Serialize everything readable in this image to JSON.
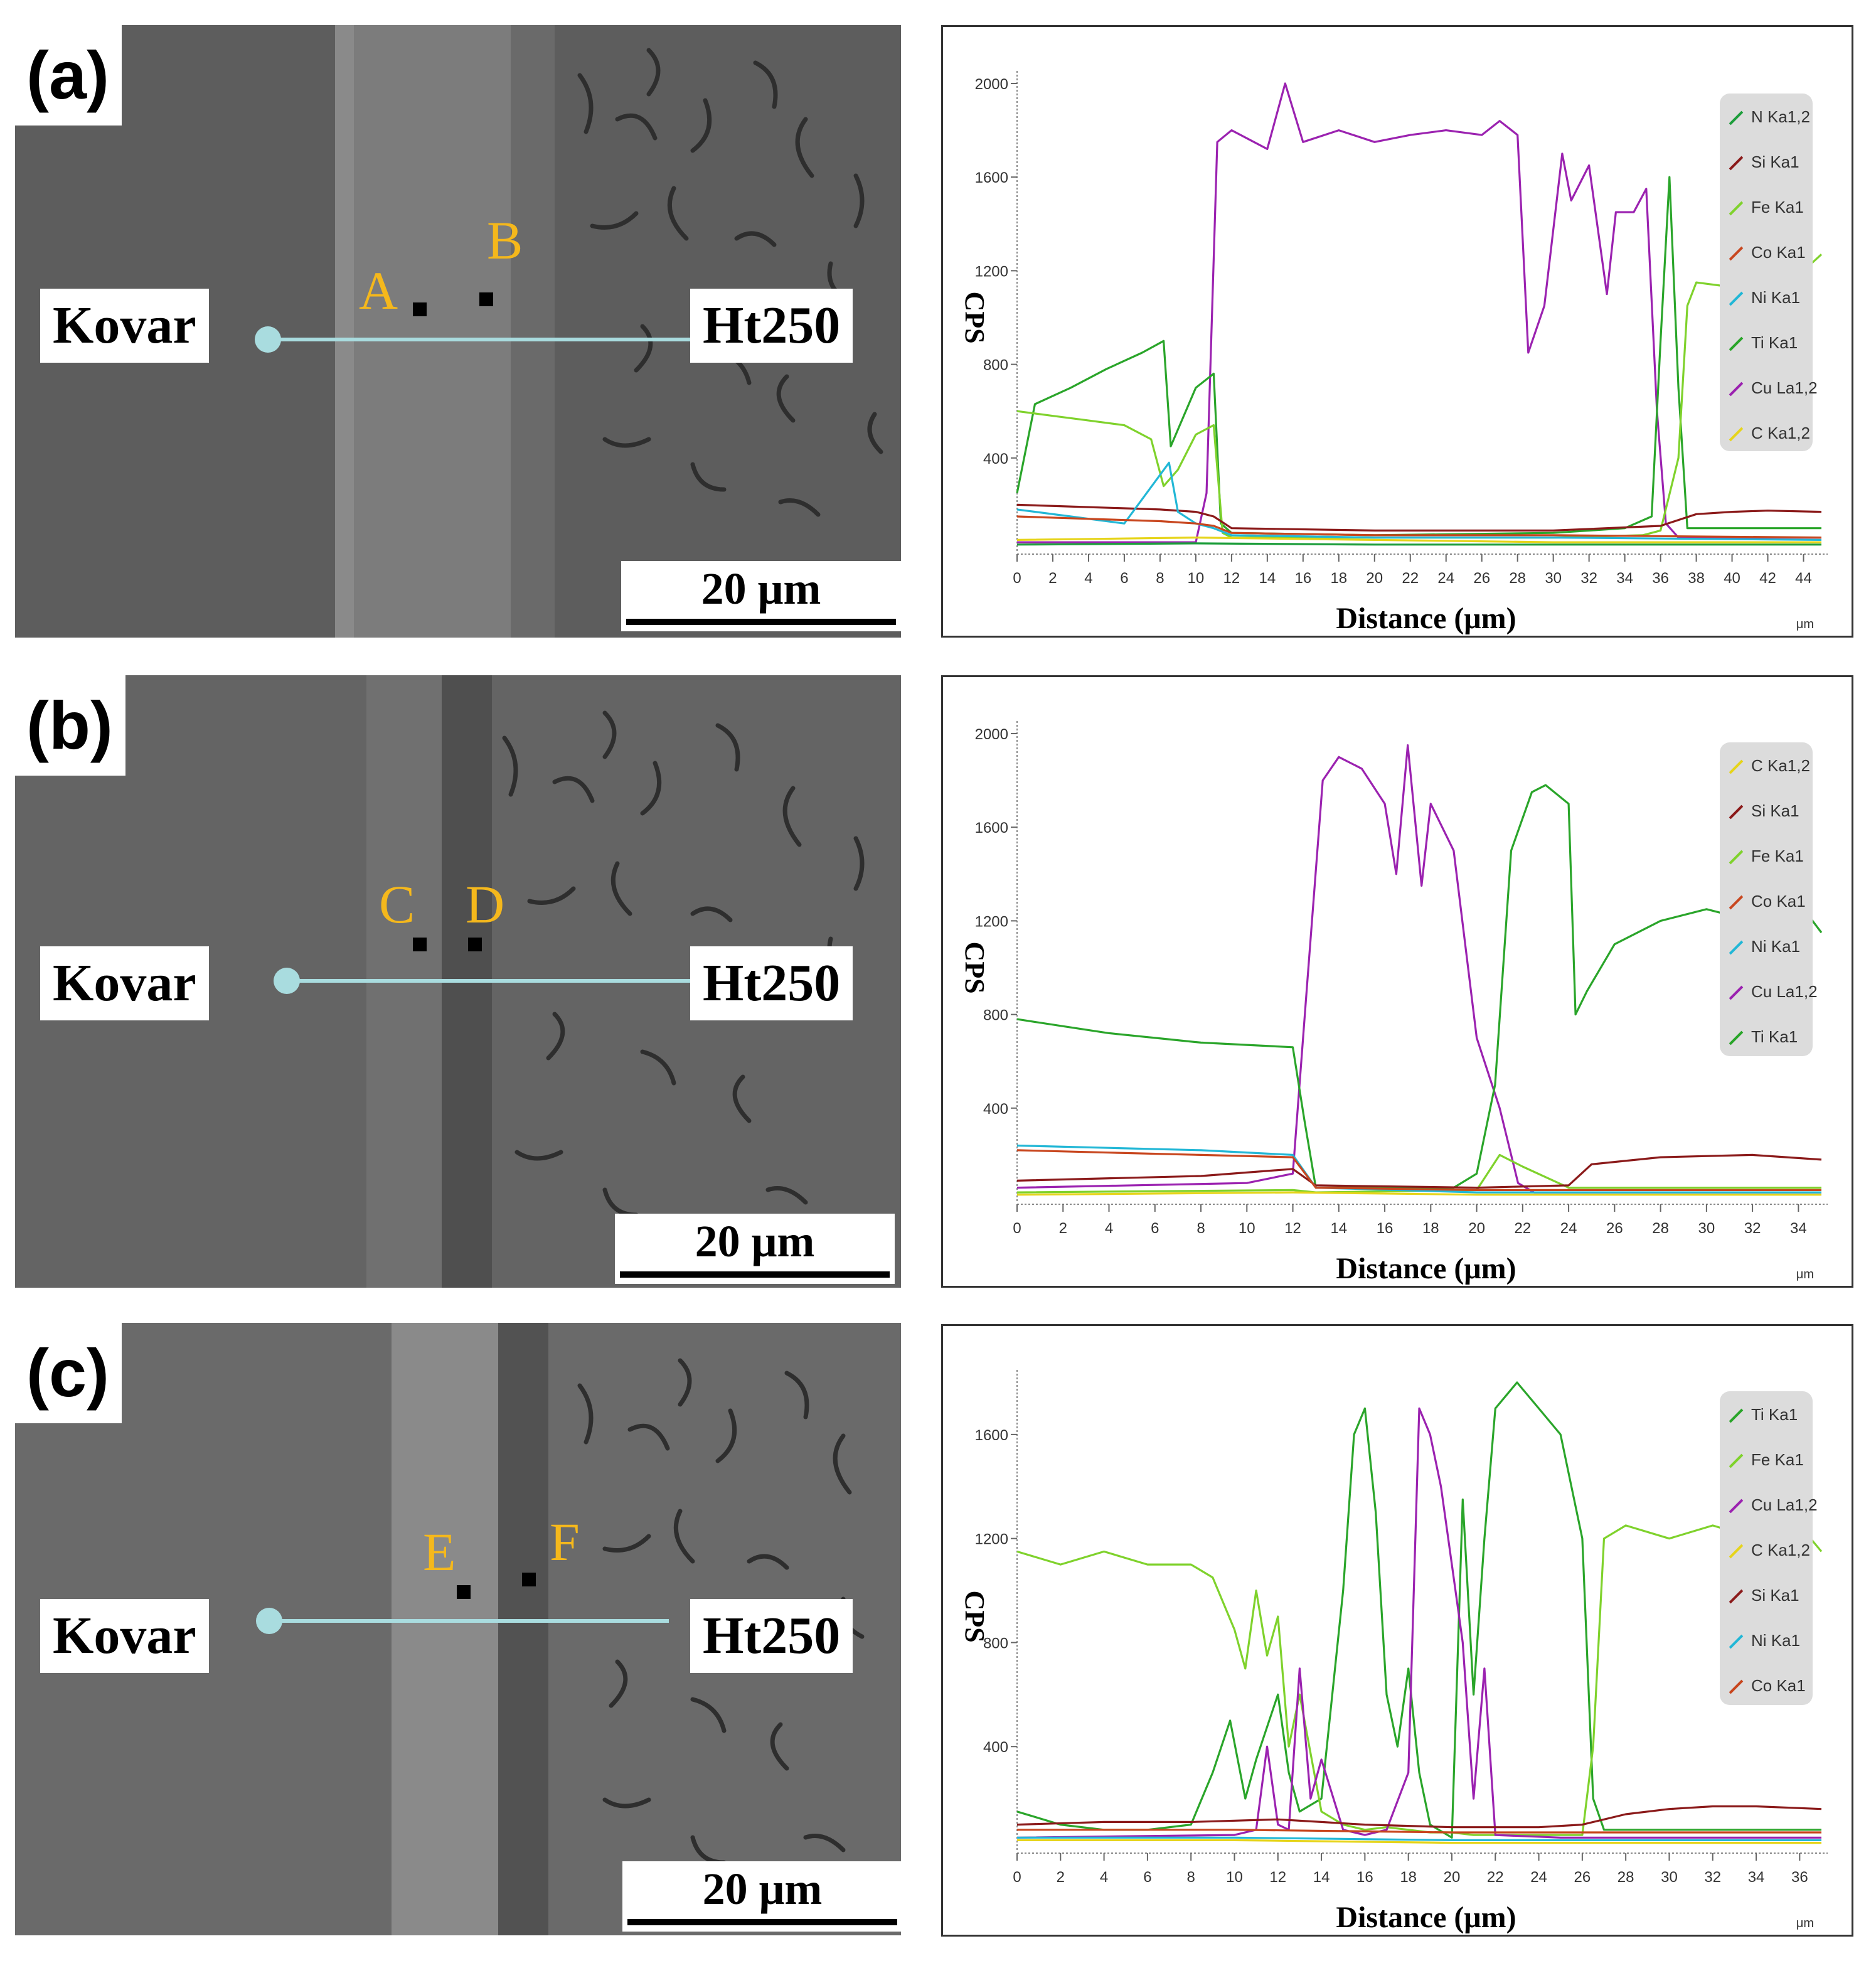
{
  "panels": [
    {
      "id": "a",
      "label": "(a)",
      "sem": {
        "left_material": "Kovar",
        "right_material": "Ht250",
        "points": [
          "A",
          "B"
        ],
        "scale_bar": "20 μm"
      },
      "chart_data": {
        "type": "line",
        "xlabel": "Distance (μm)",
        "ylabel": "CPS",
        "unit_label": "μm",
        "xlim": [
          0,
          45
        ],
        "ylim": [
          0,
          2000
        ],
        "x_ticks": [
          "0",
          "2",
          "4",
          "6",
          "8",
          "10",
          "12",
          "14",
          "16",
          "18",
          "20",
          "22",
          "24",
          "26",
          "28",
          "30",
          "32",
          "34",
          "36",
          "38",
          "40",
          "42",
          "44"
        ],
        "y_ticks": [
          "400",
          "800",
          "1200",
          "1600",
          "2000"
        ],
        "legend_position": "right",
        "legend": [
          "N Ka1,2",
          "Si Ka1",
          "Fe Ka1",
          "Co Ka1",
          "Ni Ka1",
          "Ti Ka1",
          "Cu La1,2",
          "C Ka1,2"
        ],
        "series": [
          {
            "name": "Cu La1,2",
            "color": "#9b22b0",
            "x": [
              0,
              10,
              10.6,
              11.2,
              12,
              14,
              15,
              16,
              18,
              20,
              22,
              24,
              26,
              27,
              28,
              28.6,
              29.5,
              30.5,
              31,
              32,
              33,
              33.5,
              34.5,
              35.2,
              35.8,
              36.3,
              37,
              45
            ],
            "y": [
              40,
              40,
              250,
              1750,
              1800,
              1720,
              2000,
              1750,
              1800,
              1750,
              1780,
              1800,
              1780,
              1840,
              1780,
              850,
              1050,
              1700,
              1500,
              1650,
              1100,
              1450,
              1450,
              1550,
              600,
              120,
              60,
              60
            ]
          },
          {
            "name": "Ti Ka1",
            "color": "#2aa52a",
            "x": [
              0,
              1,
              3,
              5,
              7,
              8.2,
              8.6,
              10,
              11,
              11.4,
              12,
              20,
              30,
              34,
              35.5,
              36,
              36.5,
              37,
              37.5,
              45
            ],
            "y": [
              250,
              630,
              700,
              780,
              850,
              900,
              450,
              700,
              760,
              120,
              80,
              70,
              80,
              100,
              150,
              900,
              1600,
              700,
              100,
              100
            ]
          },
          {
            "name": "Fe Ka1",
            "color": "#7fd22c",
            "x": [
              0,
              2,
              4,
              6,
              7.5,
              8.2,
              9,
              10,
              11,
              11.5,
              12,
              20,
              30,
              35,
              36,
              37,
              37.5,
              38,
              40,
              42,
              44,
              45
            ],
            "y": [
              600,
              580,
              560,
              540,
              480,
              280,
              350,
              500,
              540,
              80,
              60,
              60,
              60,
              70,
              90,
              400,
              1050,
              1150,
              1130,
              1180,
              1200,
              1270
            ]
          },
          {
            "name": "Si Ka1",
            "color": "#8b1a1a",
            "x": [
              0,
              4,
              8,
              10,
              11,
              12,
              20,
              30,
              36,
              38,
              40,
              42,
              45
            ],
            "y": [
              200,
              190,
              180,
              170,
              150,
              100,
              90,
              90,
              110,
              160,
              170,
              175,
              170
            ]
          },
          {
            "name": "Ni Ka1",
            "color": "#22b7d6",
            "x": [
              0,
              3,
              6,
              8.5,
              9,
              10,
              11,
              12,
              20,
              30,
              45
            ],
            "y": [
              180,
              150,
              120,
              380,
              170,
              120,
              100,
              70,
              60,
              60,
              50
            ]
          },
          {
            "name": "Co Ka1",
            "color": "#c8461e",
            "x": [
              0,
              4,
              8,
              10,
              11,
              12,
              20,
              30,
              45
            ],
            "y": [
              150,
              140,
              130,
              120,
              110,
              80,
              70,
              70,
              60
            ]
          },
          {
            "name": "C Ka1,2",
            "color": "#e6d41a",
            "x": [
              0,
              10,
              20,
              30,
              45
            ],
            "y": [
              50,
              60,
              50,
              40,
              40
            ]
          },
          {
            "name": "N Ka1,2",
            "color": "#1e9e3c",
            "x": [
              0,
              10,
              20,
              30,
              45
            ],
            "y": [
              30,
              35,
              30,
              30,
              30
            ]
          }
        ]
      }
    },
    {
      "id": "b",
      "label": "(b)",
      "sem": {
        "left_material": "Kovar",
        "right_material": "Ht250",
        "points": [
          "C",
          "D"
        ],
        "scale_bar": "20 μm"
      },
      "chart_data": {
        "type": "line",
        "xlabel": "Distance (μm)",
        "ylabel": "CPS",
        "unit_label": "μm",
        "xlim": [
          0,
          35
        ],
        "ylim": [
          0,
          2000
        ],
        "x_ticks": [
          "0",
          "2",
          "4",
          "6",
          "8",
          "10",
          "12",
          "14",
          "16",
          "18",
          "20",
          "22",
          "24",
          "26",
          "28",
          "30",
          "32",
          "34"
        ],
        "y_ticks": [
          "400",
          "800",
          "1200",
          "1600",
          "2000"
        ],
        "legend_position": "right",
        "legend": [
          "C Ka1,2",
          "Si Ka1",
          "Fe Ka1",
          "Co Ka1",
          "Ni Ka1",
          "Cu La1,2",
          "Ti Ka1"
        ],
        "series": [
          {
            "name": "Cu La1,2",
            "color": "#9b22b0",
            "x": [
              0,
              10,
              12,
              12.6,
              13.3,
              14,
              15,
              16,
              16.5,
              17,
              17.6,
              18,
              18.5,
              19,
              20,
              21,
              21.8,
              22.5,
              35
            ],
            "y": [
              60,
              80,
              120,
              900,
              1800,
              1900,
              1850,
              1700,
              1400,
              1950,
              1350,
              1700,
              1600,
              1500,
              700,
              400,
              80,
              40,
              40
            ]
          },
          {
            "name": "Ti Ka1",
            "color": "#2aa52a",
            "x": [
              0,
              2,
              4,
              6,
              8,
              10,
              12,
              12.5,
              13,
              16,
              19,
              20,
              20.8,
              21.5,
              22.4,
              23,
              24,
              24.3,
              24.8,
              26,
              28,
              30,
              32,
              34,
              35
            ],
            "y": [
              780,
              750,
              720,
              700,
              680,
              670,
              660,
              350,
              60,
              60,
              60,
              120,
              500,
              1500,
              1750,
              1780,
              1700,
              800,
              900,
              1100,
              1200,
              1250,
              1200,
              1280,
              1150
            ]
          },
          {
            "name": "Fe Ka1",
            "color": "#7fd22c",
            "x": [
              0,
              12,
              13,
              20,
              21,
              22,
              24,
              35
            ],
            "y": [
              40,
              50,
              40,
              50,
              200,
              150,
              60,
              60
            ]
          },
          {
            "name": "Si Ka1",
            "color": "#8b1a1a",
            "x": [
              0,
              8,
              12,
              13,
              20,
              24,
              25,
              28,
              32,
              35
            ],
            "y": [
              90,
              110,
              140,
              70,
              60,
              70,
              160,
              190,
              200,
              180
            ]
          },
          {
            "name": "Ni Ka1",
            "color": "#22b7d6",
            "x": [
              0,
              4,
              8,
              12,
              13,
              20,
              35
            ],
            "y": [
              240,
              230,
              220,
              200,
              60,
              40,
              40
            ]
          },
          {
            "name": "Co Ka1",
            "color": "#c8461e",
            "x": [
              0,
              4,
              8,
              12,
              13,
              20,
              35
            ],
            "y": [
              220,
              210,
              200,
              190,
              60,
              50,
              50
            ]
          },
          {
            "name": "C Ka1,2",
            "color": "#e6d41a",
            "x": [
              0,
              12,
              20,
              35
            ],
            "y": [
              30,
              40,
              30,
              30
            ]
          }
        ]
      }
    },
    {
      "id": "c",
      "label": "(c)",
      "sem": {
        "left_material": "Kovar",
        "right_material": "Ht250",
        "points": [
          "E",
          "F"
        ],
        "scale_bar": "20 μm"
      },
      "chart_data": {
        "type": "line",
        "xlabel": "Distance (μm)",
        "ylabel": "CPS",
        "unit_label": "μm",
        "xlim": [
          0,
          37
        ],
        "ylim": [
          0,
          1800
        ],
        "x_ticks": [
          "0",
          "2",
          "4",
          "6",
          "8",
          "10",
          "12",
          "14",
          "16",
          "18",
          "20",
          "22",
          "24",
          "26",
          "28",
          "30",
          "32",
          "34",
          "36"
        ],
        "y_ticks": [
          "400",
          "800",
          "1200",
          "1600"
        ],
        "legend_position": "right",
        "legend": [
          "Ti Ka1",
          "Fe Ka1",
          "Cu La1,2",
          "C Ka1,2",
          "Si Ka1",
          "Ni Ka1",
          "Co Ka1"
        ],
        "series": [
          {
            "name": "Ti Ka1",
            "color": "#2aa52a",
            "x": [
              0,
              2,
              4,
              6,
              8,
              9,
              9.8,
              10.5,
              11,
              12,
              12.5,
              13,
              14,
              15,
              15.5,
              16,
              16.5,
              17,
              17.5,
              18,
              18.5,
              19,
              20,
              20.5,
              21,
              21.5,
              22,
              22.5,
              23,
              24,
              25,
              26,
              26.5,
              27,
              30,
              37
            ],
            "y": [
              150,
              100,
              80,
              80,
              100,
              300,
              500,
              200,
              350,
              600,
              300,
              150,
              200,
              1000,
              1600,
              1700,
              1300,
              600,
              400,
              700,
              300,
              100,
              50,
              1350,
              600,
              1200,
              1700,
              1750,
              1800,
              1700,
              1600,
              1200,
              200,
              80,
              80,
              80
            ]
          },
          {
            "name": "Fe Ka1",
            "color": "#7fd22c",
            "x": [
              0,
              2,
              4,
              6,
              8,
              9,
              10,
              10.5,
              11,
              11.5,
              12,
              12.5,
              13,
              14,
              15,
              16,
              17,
              18,
              19,
              20,
              21,
              22,
              23,
              24,
              25,
              26,
              26.5,
              27,
              28,
              30,
              32,
              34,
              36,
              37
            ],
            "y": [
              1150,
              1100,
              1150,
              1100,
              1100,
              1050,
              850,
              700,
              1000,
              750,
              900,
              400,
              600,
              150,
              100,
              80,
              90,
              80,
              70,
              70,
              60,
              60,
              60,
              60,
              60,
              60,
              400,
              1200,
              1250,
              1200,
              1250,
              1200,
              1250,
              1150
            ]
          },
          {
            "name": "Cu La1,2",
            "color": "#9b22b0",
            "x": [
              0,
              10,
              11,
              11.5,
              12,
              12.5,
              13,
              13.5,
              14,
              15,
              16,
              17,
              18,
              18.5,
              19,
              19.5,
              20,
              20.5,
              21,
              21.5,
              22,
              25,
              37
            ],
            "y": [
              50,
              60,
              80,
              400,
              100,
              80,
              700,
              200,
              350,
              80,
              60,
              80,
              300,
              1700,
              1600,
              1400,
              1100,
              800,
              200,
              700,
              60,
              50,
              50
            ]
          },
          {
            "name": "Si Ka1",
            "color": "#8b1a1a",
            "x": [
              0,
              4,
              8,
              12,
              14,
              16,
              20,
              24,
              26,
              28,
              30,
              32,
              34,
              37
            ],
            "y": [
              100,
              110,
              110,
              120,
              110,
              100,
              90,
              90,
              100,
              140,
              160,
              170,
              170,
              160
            ]
          },
          {
            "name": "Ni Ka1",
            "color": "#22b7d6",
            "x": [
              0,
              10,
              20,
              30,
              37
            ],
            "y": [
              50,
              50,
              40,
              40,
              40
            ]
          },
          {
            "name": "Co Ka1",
            "color": "#c8461e",
            "x": [
              0,
              10,
              20,
              30,
              37
            ],
            "y": [
              80,
              80,
              70,
              70,
              70
            ]
          },
          {
            "name": "C Ka1,2",
            "color": "#e6d41a",
            "x": [
              0,
              10,
              20,
              30,
              37
            ],
            "y": [
              40,
              40,
              30,
              30,
              30
            ]
          }
        ]
      }
    }
  ]
}
